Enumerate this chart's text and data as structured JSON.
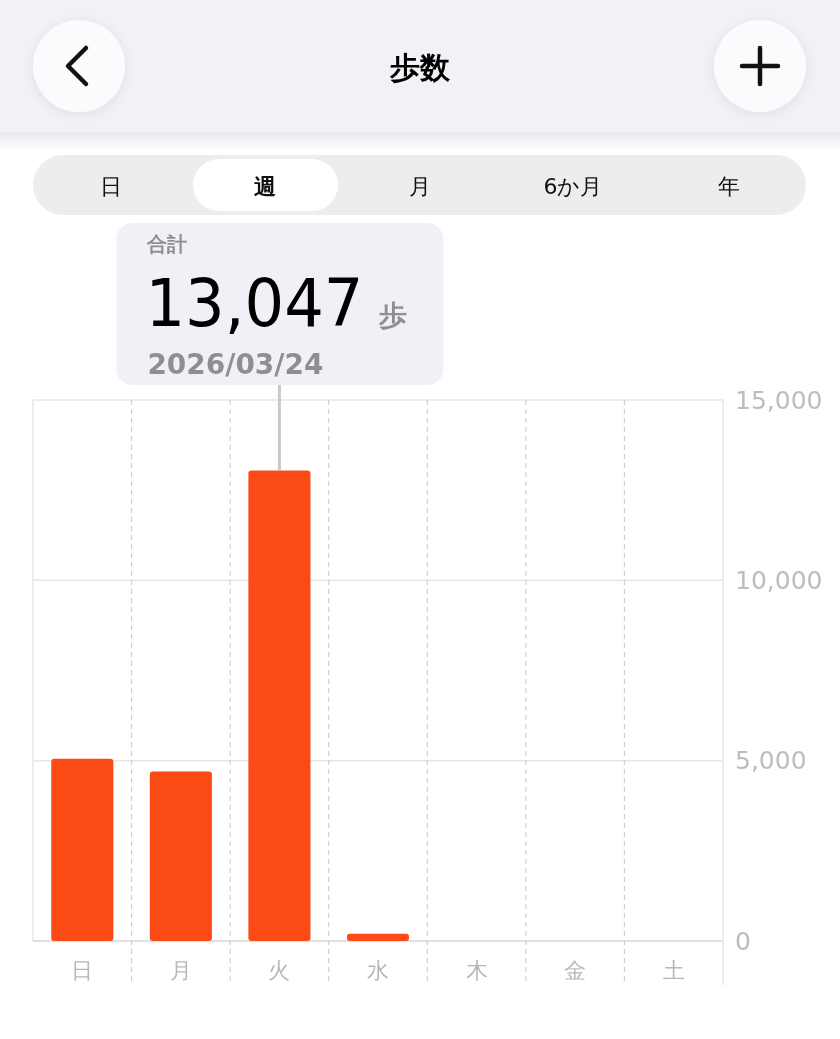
{
  "chart_data": {
    "type": "bar",
    "title": "歩数",
    "categories": [
      "日",
      "月",
      "火",
      "水",
      "木",
      "金",
      "土"
    ],
    "values": [
      5050,
      4700,
      13047,
      200,
      null,
      null,
      null
    ],
    "color": "#fb4a16",
    "ylim": [
      0,
      15000
    ],
    "yticks": [
      0,
      {
        "value": 5000,
        "label": "5,000"
      },
      {
        "value": 10000,
        "label": "10,000"
      },
      {
        "value": 15000,
        "label": "15,000"
      }
    ],
    "grid": true,
    "value_labels": [
      null,
      null,
      "13,047",
      null,
      null,
      null,
      null
    ],
    "annotations": [
      "日",
      "週",
      "月",
      "6か月",
      "年",
      "合計",
      "歩",
      {
        "text": "2026/03/24",
        "x": "火",
        "y": 13047
      }
    ]
  }
}
